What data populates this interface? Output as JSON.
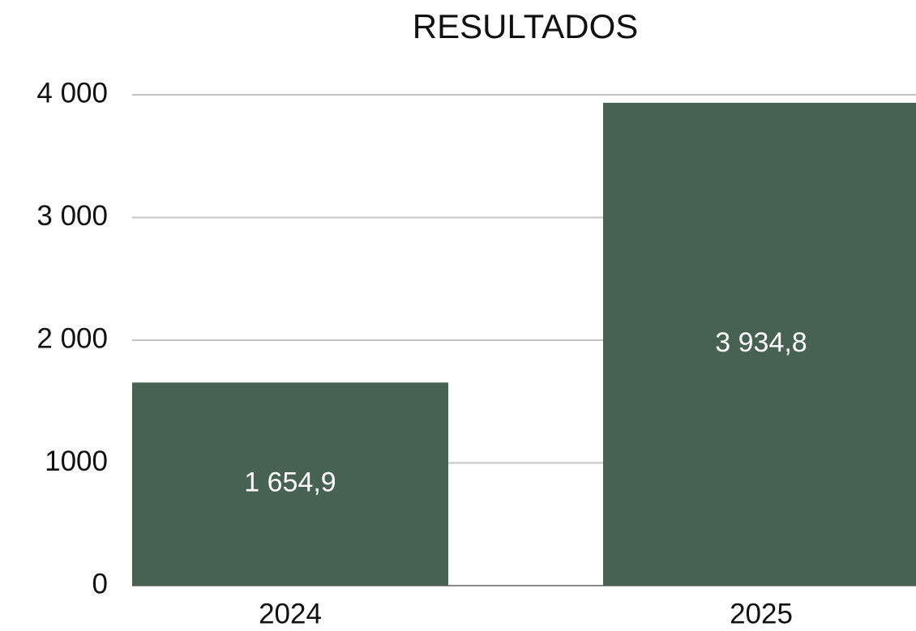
{
  "chart_data": {
    "type": "bar",
    "title": "RESULTADOS",
    "categories": [
      "2024",
      "2025"
    ],
    "values": [
      1654.9,
      3934.8
    ],
    "value_labels": [
      "1 654,9",
      "3 934,8"
    ],
    "color": "#476152",
    "ylim": [
      0,
      4000
    ],
    "yticks": [
      0,
      1000,
      {
        "value": 2000,
        "label": "2 000"
      },
      {
        "value": 3000,
        "label": "3 000"
      },
      {
        "value": 4000,
        "label": "4 000"
      }
    ],
    "grid": true
  }
}
